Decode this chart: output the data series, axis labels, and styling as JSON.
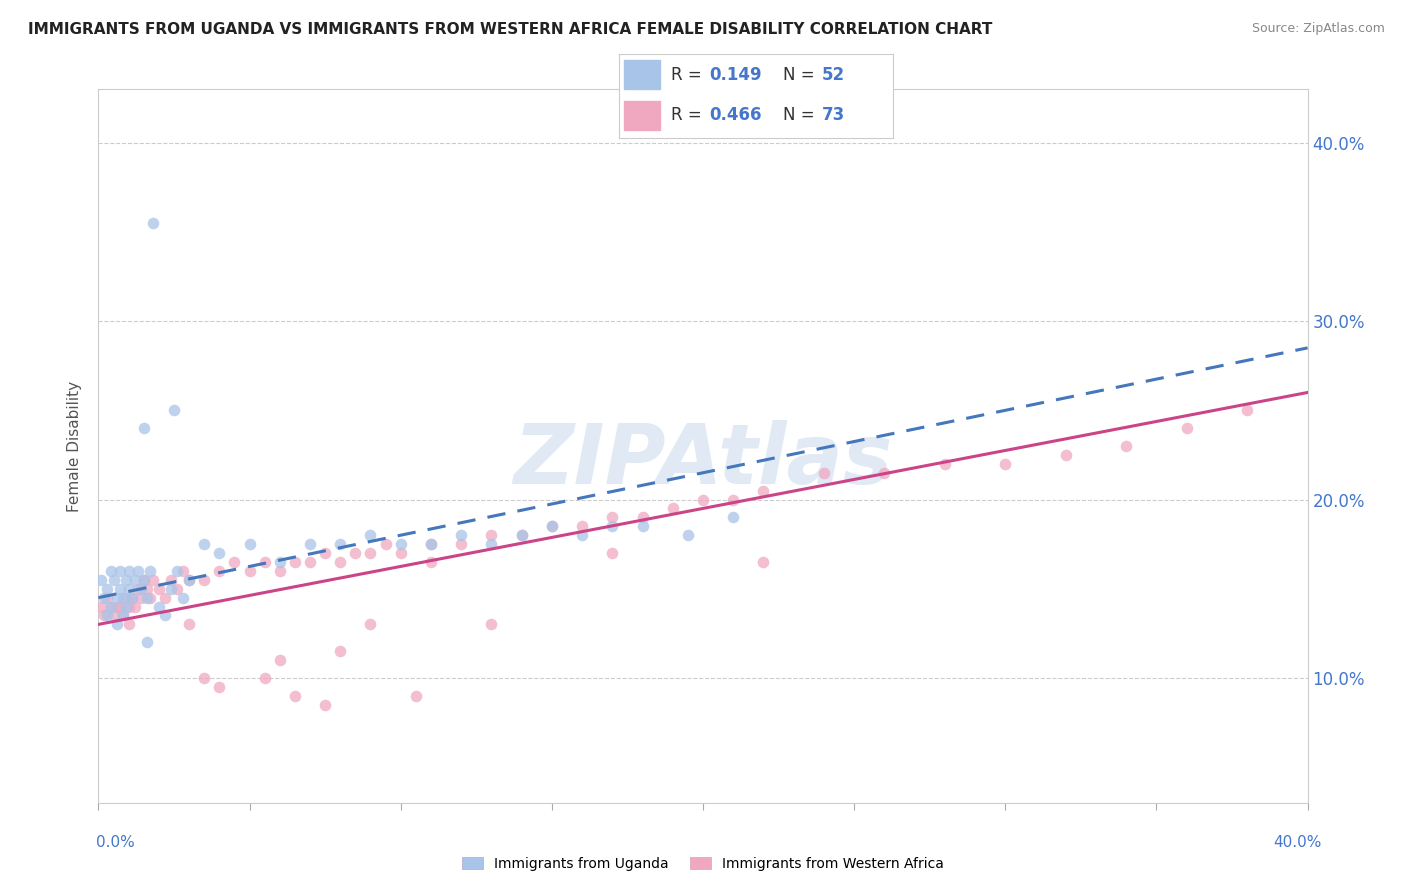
{
  "title": "IMMIGRANTS FROM UGANDA VS IMMIGRANTS FROM WESTERN AFRICA FEMALE DISABILITY CORRELATION CHART",
  "source": "Source: ZipAtlas.com",
  "ylabel": "Female Disability",
  "xmin": 0.0,
  "xmax": 0.4,
  "ymin": 0.03,
  "ymax": 0.43,
  "watermark_text": "ZIPAtlas",
  "legend1_R": "0.149",
  "legend1_N": "52",
  "legend2_R": "0.466",
  "legend2_N": "73",
  "color_uganda": "#a8c4e8",
  "color_western": "#f0a8c0",
  "color_line_uganda": "#4477bb",
  "color_line_western": "#cc4488",
  "ytick_vals": [
    0.1,
    0.2,
    0.3,
    0.4
  ],
  "ytick_labels": [
    "10.0%",
    "20.0%",
    "30.0%",
    "40.0%"
  ],
  "uganda_x": [
    0.001,
    0.002,
    0.003,
    0.003,
    0.004,
    0.004,
    0.005,
    0.006,
    0.006,
    0.007,
    0.007,
    0.008,
    0.008,
    0.009,
    0.009,
    0.01,
    0.01,
    0.011,
    0.012,
    0.013,
    0.014,
    0.015,
    0.016,
    0.016,
    0.017,
    0.018,
    0.02,
    0.022,
    0.024,
    0.026,
    0.028,
    0.03,
    0.035,
    0.04,
    0.05,
    0.06,
    0.07,
    0.08,
    0.09,
    0.1,
    0.11,
    0.12,
    0.13,
    0.14,
    0.15,
    0.16,
    0.17,
    0.18,
    0.195,
    0.21,
    0.025,
    0.015
  ],
  "uganda_y": [
    0.155,
    0.145,
    0.15,
    0.135,
    0.16,
    0.14,
    0.155,
    0.145,
    0.13,
    0.15,
    0.16,
    0.145,
    0.135,
    0.155,
    0.14,
    0.15,
    0.16,
    0.145,
    0.155,
    0.16,
    0.15,
    0.155,
    0.145,
    0.12,
    0.16,
    0.355,
    0.14,
    0.135,
    0.15,
    0.16,
    0.145,
    0.155,
    0.175,
    0.17,
    0.175,
    0.165,
    0.175,
    0.175,
    0.18,
    0.175,
    0.175,
    0.18,
    0.175,
    0.18,
    0.185,
    0.18,
    0.185,
    0.185,
    0.18,
    0.19,
    0.25,
    0.24
  ],
  "western_x": [
    0.001,
    0.002,
    0.003,
    0.004,
    0.005,
    0.006,
    0.007,
    0.008,
    0.009,
    0.01,
    0.01,
    0.011,
    0.012,
    0.013,
    0.014,
    0.015,
    0.016,
    0.017,
    0.018,
    0.02,
    0.022,
    0.024,
    0.026,
    0.028,
    0.03,
    0.03,
    0.035,
    0.04,
    0.045,
    0.05,
    0.055,
    0.06,
    0.065,
    0.07,
    0.075,
    0.08,
    0.085,
    0.09,
    0.095,
    0.1,
    0.11,
    0.12,
    0.13,
    0.14,
    0.15,
    0.16,
    0.17,
    0.18,
    0.19,
    0.2,
    0.21,
    0.22,
    0.24,
    0.26,
    0.28,
    0.3,
    0.32,
    0.34,
    0.36,
    0.38,
    0.17,
    0.22,
    0.11,
    0.09,
    0.13,
    0.06,
    0.08,
    0.075,
    0.105,
    0.065,
    0.04,
    0.035,
    0.055
  ],
  "western_y": [
    0.14,
    0.135,
    0.145,
    0.14,
    0.135,
    0.14,
    0.14,
    0.135,
    0.145,
    0.14,
    0.13,
    0.145,
    0.14,
    0.15,
    0.145,
    0.155,
    0.15,
    0.145,
    0.155,
    0.15,
    0.145,
    0.155,
    0.15,
    0.16,
    0.155,
    0.13,
    0.155,
    0.16,
    0.165,
    0.16,
    0.165,
    0.16,
    0.165,
    0.165,
    0.17,
    0.165,
    0.17,
    0.17,
    0.175,
    0.17,
    0.175,
    0.175,
    0.18,
    0.18,
    0.185,
    0.185,
    0.19,
    0.19,
    0.195,
    0.2,
    0.2,
    0.205,
    0.215,
    0.215,
    0.22,
    0.22,
    0.225,
    0.23,
    0.24,
    0.25,
    0.17,
    0.165,
    0.165,
    0.13,
    0.13,
    0.11,
    0.115,
    0.085,
    0.09,
    0.09,
    0.095,
    0.1,
    0.1
  ]
}
